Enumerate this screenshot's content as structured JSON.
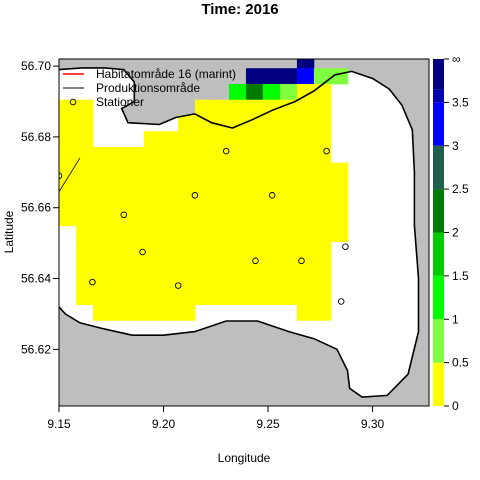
{
  "chart_data": {
    "type": "heatmap",
    "title": "Time: 2016",
    "xlabel": "Longitude",
    "ylabel": "Latitude",
    "xlim": [
      9.15,
      9.327
    ],
    "ylim": [
      56.604,
      56.702
    ],
    "xticks": [
      "9.15",
      "9.20",
      "9.25",
      "9.30"
    ],
    "yticks": [
      "56.62",
      "56.64",
      "56.66",
      "56.68",
      "56.70"
    ],
    "grid": false,
    "legend_position": "top-left",
    "legend": [
      {
        "label": "Habitatområde 16 (marint)",
        "symbol": "line",
        "color": "#ff0000"
      },
      {
        "label": "Produktionsområde",
        "symbol": "line",
        "color": "#000000"
      },
      {
        "label": "Stationer",
        "symbol": "circle",
        "color": "#000000"
      }
    ],
    "colorbar": {
      "tick_labels": [
        "0",
        "0.5",
        "1",
        "1.5",
        "2",
        "2.5",
        "3",
        "3.5",
        "∞"
      ],
      "bins": [
        {
          "from": 0,
          "to": 0.5,
          "color": "#ffff00"
        },
        {
          "from": 0.5,
          "to": 1,
          "color": "#80ff40"
        },
        {
          "from": 1,
          "to": 1.5,
          "color": "#00ff00"
        },
        {
          "from": 1.5,
          "to": 2,
          "color": "#00cc00"
        },
        {
          "from": 2,
          "to": 2.5,
          "color": "#007a00"
        },
        {
          "from": 2.5,
          "to": 3,
          "color": "#1f5e4c"
        },
        {
          "from": 3,
          "to": 3.5,
          "color": "#0000ff"
        },
        {
          "from": 3.5,
          "to": 4,
          "color": "#0000b0"
        },
        {
          "from": 4,
          "to": "inf",
          "color": "#000080"
        }
      ]
    },
    "land_color": "#bebebe",
    "grid_cells": {
      "lon_start": 9.15,
      "lat_start": 56.6282,
      "cell_lon": 0.00813,
      "cell_lat": 0.00445,
      "values_top_row_first": [
        [
          null,
          null,
          null,
          null,
          null,
          null,
          null,
          null,
          null,
          null,
          null,
          null,
          null,
          null,
          5,
          null,
          null,
          null
        ],
        [
          null,
          null,
          null,
          null,
          null,
          null,
          null,
          null,
          null,
          null,
          null,
          5,
          5,
          5,
          3,
          0.7,
          0.7,
          null
        ],
        [
          null,
          null,
          null,
          null,
          null,
          null,
          null,
          null,
          null,
          null,
          1.2,
          2.2,
          1.2,
          0.7,
          0.3,
          0.3,
          null,
          null
        ],
        [
          0.3,
          0.3,
          null,
          null,
          null,
          null,
          null,
          null,
          0.3,
          0.3,
          0.3,
          0.3,
          0.3,
          0.3,
          0.3,
          0.3,
          null,
          null
        ],
        [
          0.3,
          0.3,
          null,
          null,
          null,
          null,
          null,
          0.3,
          0.3,
          0.3,
          0.3,
          0.3,
          0.3,
          0.3,
          0.3,
          0.3,
          null,
          null
        ],
        [
          0.3,
          0.3,
          null,
          null,
          null,
          0.3,
          0.3,
          0.3,
          0.3,
          0.3,
          0.3,
          0.3,
          0.3,
          0.3,
          0.3,
          0.3,
          null,
          null
        ],
        [
          0.3,
          0.3,
          0.3,
          0.3,
          0.3,
          0.3,
          0.3,
          0.3,
          0.3,
          0.3,
          0.3,
          0.3,
          0.3,
          0.3,
          0.3,
          0.3,
          null,
          null
        ],
        [
          0.3,
          0.3,
          0.3,
          0.3,
          0.3,
          0.3,
          0.3,
          0.3,
          0.3,
          0.3,
          0.3,
          0.3,
          0.3,
          0.3,
          0.3,
          0.3,
          0.3,
          null
        ],
        [
          0.3,
          0.3,
          0.3,
          0.3,
          0.3,
          0.3,
          0.3,
          0.3,
          0.3,
          0.3,
          0.3,
          0.3,
          0.3,
          0.3,
          0.3,
          0.3,
          0.3,
          null
        ],
        [
          0.3,
          0.3,
          0.3,
          0.3,
          0.3,
          0.3,
          0.3,
          0.3,
          0.3,
          0.3,
          0.3,
          0.3,
          0.3,
          0.3,
          0.3,
          0.3,
          0.3,
          null
        ],
        [
          0.3,
          0.3,
          0.3,
          0.3,
          0.3,
          0.3,
          0.3,
          0.3,
          0.3,
          0.3,
          0.3,
          0.3,
          0.3,
          0.3,
          0.3,
          0.3,
          0.3,
          null
        ],
        [
          null,
          0.3,
          0.3,
          0.3,
          0.3,
          0.3,
          0.3,
          0.3,
          0.3,
          0.3,
          0.3,
          0.3,
          0.3,
          0.3,
          0.3,
          0.3,
          0.3,
          null
        ],
        [
          null,
          0.3,
          0.3,
          0.3,
          0.3,
          0.3,
          0.3,
          0.3,
          0.3,
          0.3,
          0.3,
          0.3,
          0.3,
          0.3,
          0.3,
          0.3,
          null,
          null
        ],
        [
          null,
          0.3,
          0.3,
          0.3,
          0.3,
          0.3,
          0.3,
          0.3,
          0.3,
          0.3,
          0.3,
          0.3,
          0.3,
          0.3,
          0.3,
          0.3,
          null,
          null
        ],
        [
          null,
          0.3,
          0.3,
          0.3,
          0.3,
          0.3,
          0.3,
          0.3,
          0.3,
          0.3,
          0.3,
          0.3,
          0.3,
          0.3,
          0.3,
          0.3,
          null,
          null
        ],
        [
          null,
          0.3,
          0.3,
          0.3,
          0.3,
          0.3,
          0.3,
          0.3,
          0.3,
          0.3,
          0.3,
          0.3,
          0.3,
          0.3,
          0.3,
          0.3,
          null,
          null
        ],
        [
          null,
          null,
          0.3,
          0.3,
          0.3,
          0.3,
          0.3,
          0.3,
          null,
          null,
          null,
          null,
          null,
          null,
          0.3,
          0.3,
          null,
          null
        ]
      ]
    },
    "stations": [
      {
        "lon": 9.15,
        "lat": 56.669
      },
      {
        "lon": 9.23,
        "lat": 56.676
      },
      {
        "lon": 9.278,
        "lat": 56.676
      },
      {
        "lon": 9.215,
        "lat": 56.6635
      },
      {
        "lon": 9.252,
        "lat": 56.6635
      },
      {
        "lon": 9.181,
        "lat": 56.658
      },
      {
        "lon": 9.19,
        "lat": 56.6475
      },
      {
        "lon": 9.287,
        "lat": 56.649
      },
      {
        "lon": 9.244,
        "lat": 56.645
      },
      {
        "lon": 9.266,
        "lat": 56.645
      },
      {
        "lon": 9.166,
        "lat": 56.639
      },
      {
        "lon": 9.207,
        "lat": 56.638
      },
      {
        "lon": 9.285,
        "lat": 56.6335
      }
    ],
    "coastline": [
      [
        9.15,
        56.699
      ],
      [
        9.161,
        56.6995
      ],
      [
        9.172,
        56.6995
      ],
      [
        9.181,
        56.699
      ],
      [
        9.186,
        56.6955
      ],
      [
        9.186,
        56.69
      ],
      [
        9.18,
        56.688
      ],
      [
        9.183,
        56.684
      ],
      [
        9.198,
        56.6835
      ],
      [
        9.206,
        56.6855
      ],
      [
        9.215,
        56.6865
      ],
      [
        9.223,
        56.684
      ],
      [
        9.233,
        56.6825
      ],
      [
        9.243,
        56.685
      ],
      [
        9.252,
        56.6875
      ],
      [
        9.263,
        56.69
      ],
      [
        9.272,
        56.693
      ],
      [
        9.282,
        56.6975
      ],
      [
        9.29,
        56.6985
      ],
      [
        9.3,
        56.6965
      ],
      [
        9.308,
        56.6935
      ],
      [
        9.314,
        56.689
      ],
      [
        9.319,
        56.682
      ],
      [
        9.32,
        56.67
      ],
      [
        9.32,
        56.655
      ],
      [
        9.322,
        56.64
      ],
      [
        9.322,
        56.625
      ],
      [
        9.317,
        56.613
      ],
      [
        9.307,
        56.607
      ],
      [
        9.295,
        56.6065
      ],
      [
        9.289,
        56.609
      ],
      [
        9.288,
        56.614
      ],
      [
        9.283,
        56.62
      ],
      [
        9.272,
        56.623
      ],
      [
        9.26,
        56.625
      ],
      [
        9.245,
        56.628
      ],
      [
        9.23,
        56.628
      ],
      [
        9.215,
        56.625
      ],
      [
        9.2,
        56.624
      ],
      [
        9.185,
        56.624
      ],
      [
        9.17,
        56.626
      ],
      [
        9.16,
        56.6275
      ],
      [
        9.153,
        56.63
      ],
      [
        9.15,
        56.632
      ]
    ],
    "production_boundary": [
      [
        9.15,
        56.6645
      ],
      [
        9.16,
        56.674
      ]
    ]
  }
}
